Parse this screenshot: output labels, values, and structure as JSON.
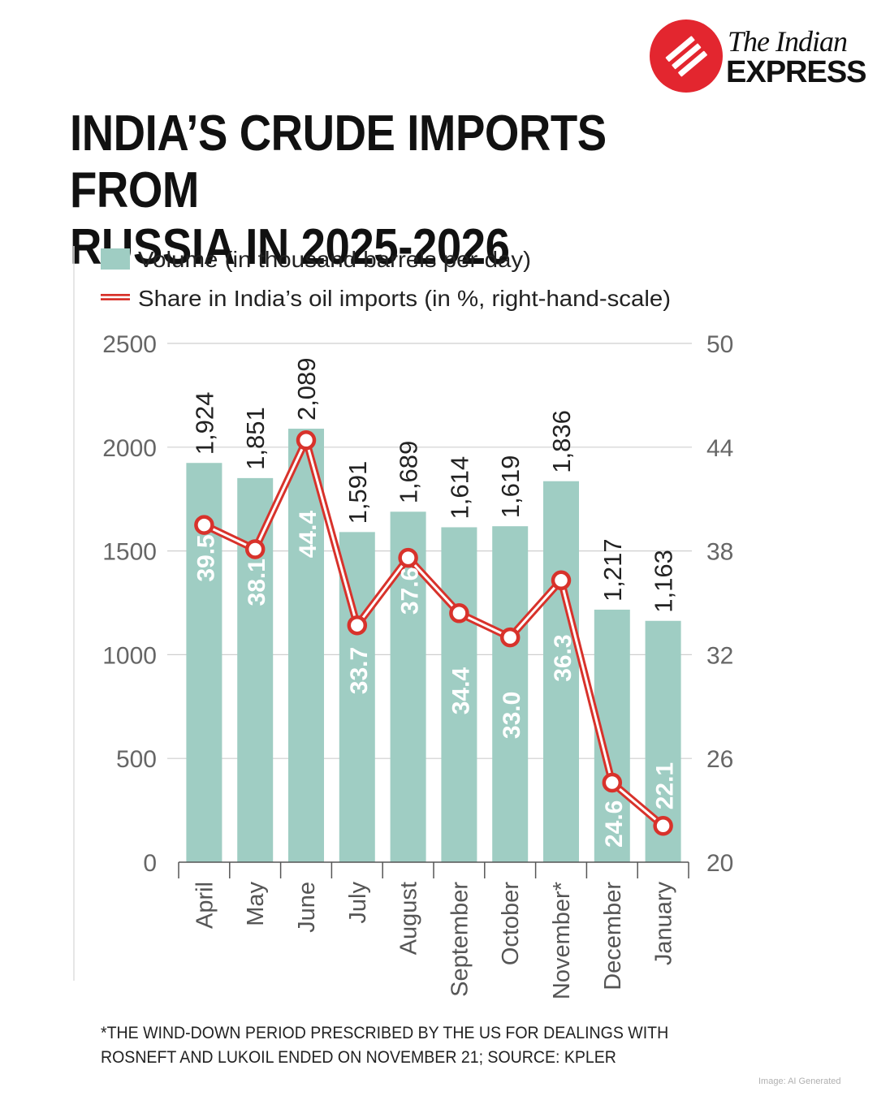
{
  "brand": {
    "line1": "The Indian",
    "line2": "EXPRESS",
    "color": "#e3262f",
    "icon": "indian-express-logo-icon"
  },
  "title_lines": [
    "INDIA’S CRUDE IMPORTS FROM",
    "RUSSIA IN 2025-2026"
  ],
  "chart_data": {
    "type": "bar",
    "title": "INDIA’S CRUDE IMPORTS FROM RUSSIA IN 2025-2026",
    "categories": [
      "April",
      "May",
      "June",
      "July",
      "August",
      "September",
      "October",
      "November*",
      "December",
      "January"
    ],
    "series": [
      {
        "name": "Volume (in thousand barrels per day)",
        "type": "bar",
        "axis": "left",
        "color": "#9fcdc3",
        "values": [
          1924,
          1851,
          2089,
          1591,
          1689,
          1614,
          1619,
          1836,
          1217,
          1163
        ],
        "labels": [
          "1,924",
          "1,851",
          "2,089",
          "1,591",
          "1,689",
          "1,614",
          "1,619",
          "1,836",
          "1,217",
          "1,163"
        ]
      },
      {
        "name": "Share in India’s oil imports (in %, right-hand-scale)",
        "type": "line",
        "axis": "right",
        "color": "#d8322b",
        "values": [
          39.5,
          38.1,
          44.4,
          33.7,
          37.6,
          34.4,
          33.0,
          36.3,
          24.6,
          22.1
        ],
        "labels": [
          "39.5",
          "38.1",
          "44.4",
          "33.7",
          "37.6",
          "34.4",
          "33.0",
          "36.3",
          "24.6",
          "22.1"
        ]
      }
    ],
    "y_left": {
      "ylim": [
        0,
        2500
      ],
      "ticks": [
        "2500",
        "2000",
        "1500",
        "1000",
        "500",
        "0"
      ]
    },
    "y_right": {
      "ylim": [
        20,
        50
      ],
      "ticks": [
        "50",
        "44",
        "38",
        "32",
        "26",
        "20"
      ]
    },
    "legend_position": "top-left",
    "grid": true
  },
  "footnote": {
    "line1": "*THE WIND-DOWN PERIOD PRESCRIBED BY THE US FOR DEALINGS WITH",
    "line2": "ROSNEFT AND LUKOIL ENDED ON NOVEMBER 21; SOURCE: KPLER"
  },
  "watermark": "Image: AI Generated"
}
